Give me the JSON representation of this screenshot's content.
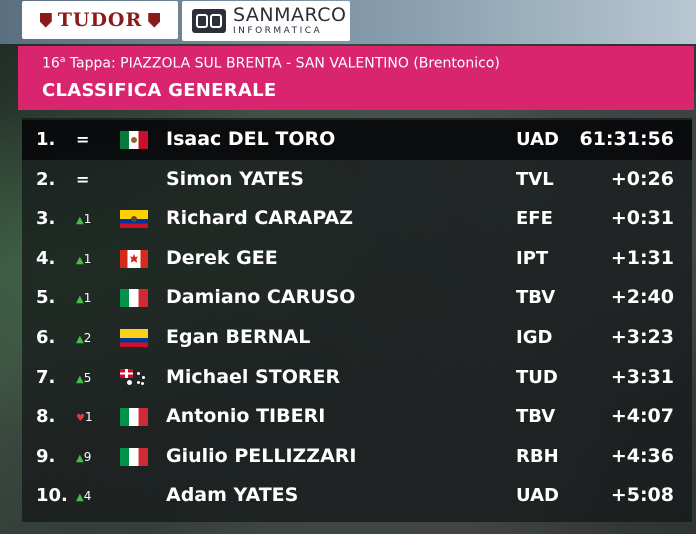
{
  "sponsors": {
    "tudor": "TUDOR",
    "sanmarco_name": "SANMARCO",
    "sanmarco_sub": "INFORMATICA"
  },
  "header": {
    "stage_number": "16",
    "stage_sup": "a",
    "stage_word": "Tappa:",
    "route": "PIAZZOLA SUL BRENTA - SAN VALENTINO (Brentonico)",
    "title": "CLASSIFICA GENERALE"
  },
  "standings": [
    {
      "pos": "1.",
      "move_type": "eq",
      "move": "",
      "flag": "mx",
      "rider": "Isaac DEL TORO",
      "team": "UAD",
      "time": "61:31:56"
    },
    {
      "pos": "2.",
      "move_type": "eq",
      "move": "",
      "flag": "gb",
      "rider": "Simon YATES",
      "team": "TVL",
      "time": "+0:26"
    },
    {
      "pos": "3.",
      "move_type": "up",
      "move": "1",
      "flag": "ec",
      "rider": "Richard CARAPAZ",
      "team": "EFE",
      "time": "+0:31"
    },
    {
      "pos": "4.",
      "move_type": "up",
      "move": "1",
      "flag": "ca",
      "rider": "Derek GEE",
      "team": "IPT",
      "time": "+1:31"
    },
    {
      "pos": "5.",
      "move_type": "up",
      "move": "1",
      "flag": "it",
      "rider": "Damiano CARUSO",
      "team": "TBV",
      "time": "+2:40"
    },
    {
      "pos": "6.",
      "move_type": "up",
      "move": "2",
      "flag": "co",
      "rider": "Egan BERNAL",
      "team": "IGD",
      "time": "+3:23"
    },
    {
      "pos": "7.",
      "move_type": "up",
      "move": "5",
      "flag": "au",
      "rider": "Michael STORER",
      "team": "TUD",
      "time": "+3:31"
    },
    {
      "pos": "8.",
      "move_type": "down",
      "move": "1",
      "flag": "it",
      "rider": "Antonio TIBERI",
      "team": "TBV",
      "time": "+4:07"
    },
    {
      "pos": "9.",
      "move_type": "up",
      "move": "9",
      "flag": "it",
      "rider": "Giulio PELLIZZARI",
      "team": "RBH",
      "time": "+4:36"
    },
    {
      "pos": "10.",
      "move_type": "up",
      "move": "4",
      "flag": "gb",
      "rider": "Adam YATES",
      "team": "UAD",
      "time": "+5:08"
    }
  ],
  "colors": {
    "header_bg": "#d8256e",
    "up_arrow": "#43c04a",
    "down_arrow": "#e03a3a"
  },
  "icons": {
    "up": "triangle-up-icon",
    "down": "triangle-down-icon",
    "same": "equals-icon"
  }
}
